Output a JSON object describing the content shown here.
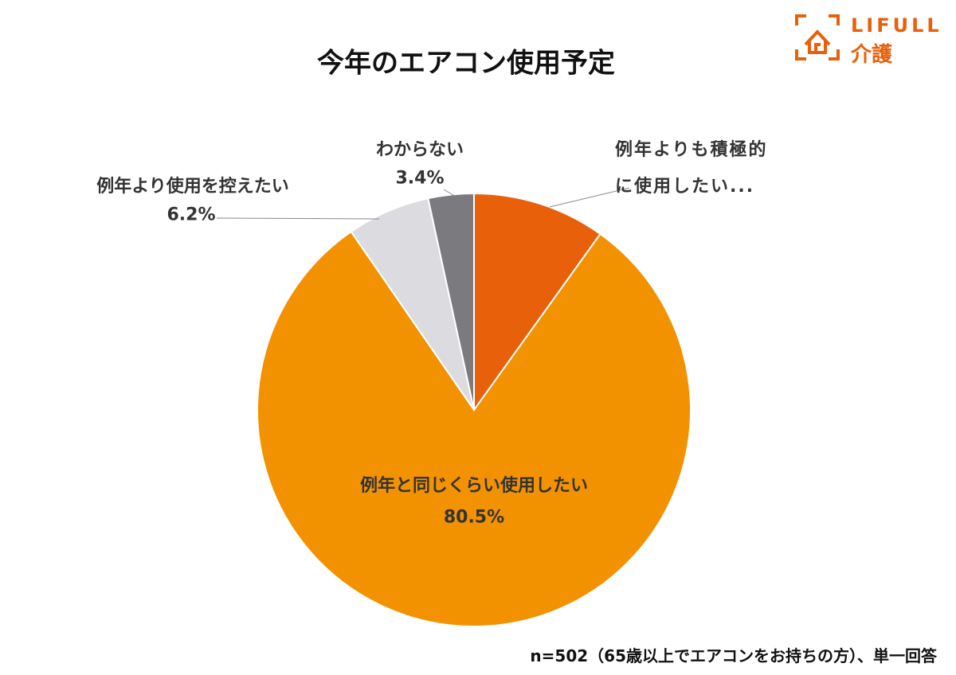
{
  "chart_data": {
    "type": "pie",
    "title": "今年のエアコン使用予定",
    "categories": [
      "例年よりも積極的に使用したい...",
      "例年と同じくらい使用したい",
      "例年より使用を控えたい",
      "わからない"
    ],
    "values": [
      9.9,
      80.5,
      6.2,
      3.4
    ],
    "value_labels": [
      null,
      "80.5%",
      "6.2%",
      "3.4%"
    ],
    "colors": [
      "#e8600a",
      "#f39200",
      "#dcdce0",
      "#7a7a7f"
    ],
    "note": "n=502（65歳以上でエアコンをお持ちの方）、単一回答"
  },
  "logo": {
    "brand": "LIFULL",
    "sub": "介護"
  }
}
